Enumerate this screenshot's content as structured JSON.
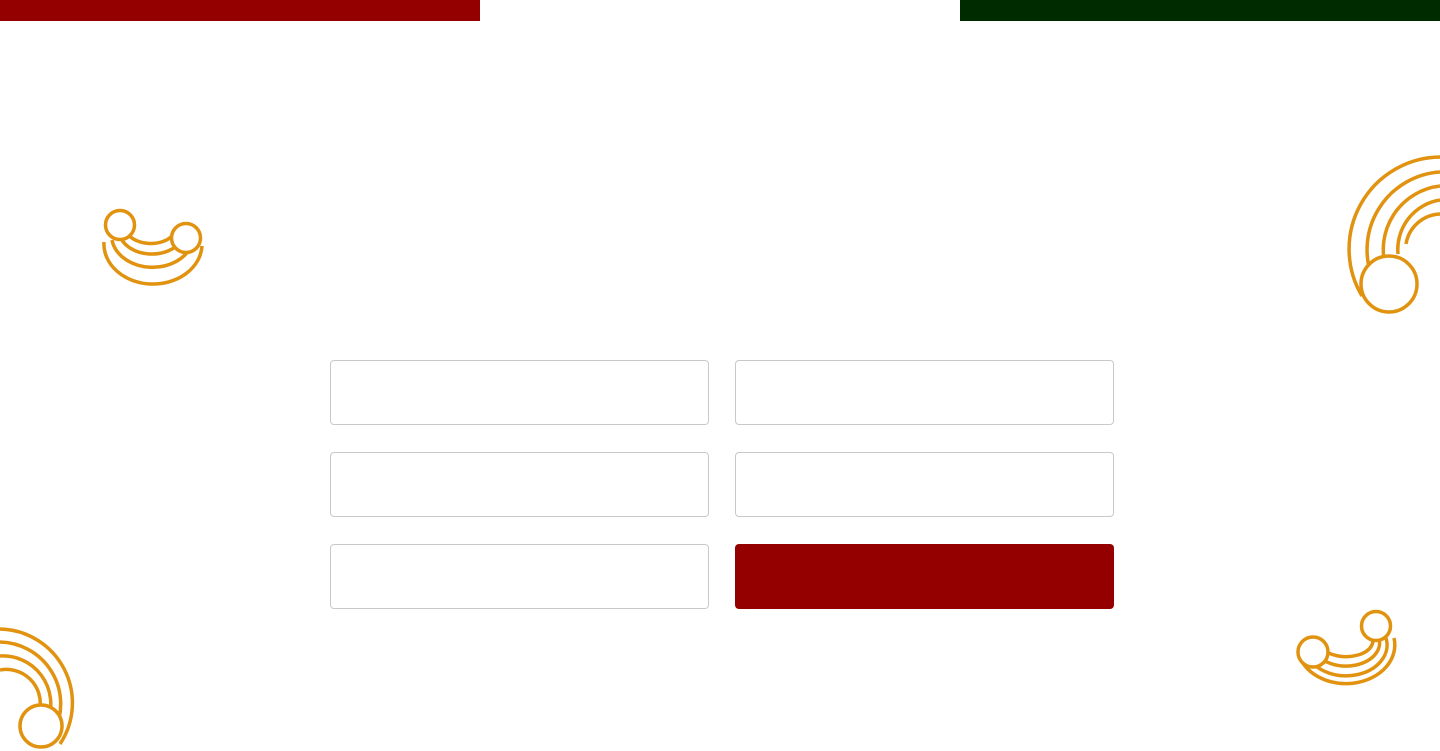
{
  "colors": {
    "flag_red": "#940000",
    "flag_white": "#FFFFFF",
    "flag_green": "#002B00",
    "accent_gold": "#E1920F",
    "button_bg": "#940000",
    "input_border": "#C9C9C9"
  },
  "decorations": {
    "icon": "swirl-arc-icon"
  },
  "form": {
    "field_1": {
      "value": "",
      "placeholder": ""
    },
    "field_2": {
      "value": "",
      "placeholder": ""
    },
    "field_3": {
      "value": "",
      "placeholder": ""
    },
    "field_4": {
      "value": "",
      "placeholder": ""
    },
    "field_5": {
      "value": "",
      "placeholder": ""
    },
    "submit_label": ""
  }
}
